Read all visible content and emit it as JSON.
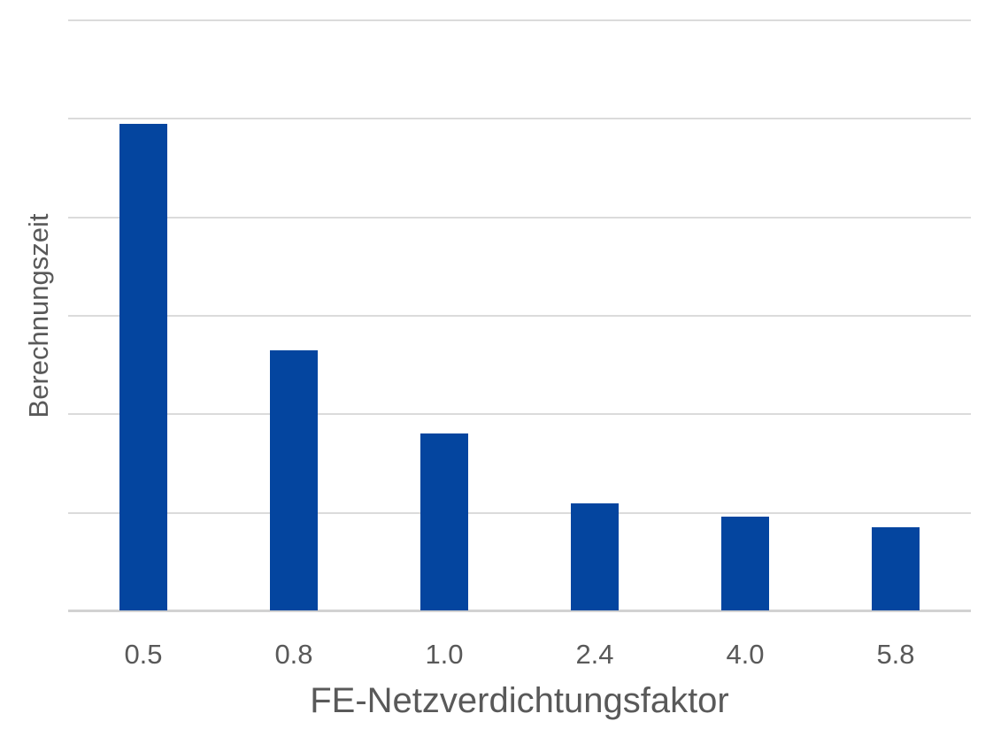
{
  "chart_data": {
    "type": "bar",
    "title": "",
    "categories": [
      "0.5",
      "0.8",
      "1.0",
      "2.4",
      "4.0",
      "5.8"
    ],
    "values": [
      4.94,
      2.64,
      1.8,
      1.09,
      0.95,
      0.84
    ],
    "xlabel": "FE-Netzverdichtungsfaktor",
    "ylabel": "Berechnungszeit",
    "ylim": [
      0,
      6
    ],
    "gridline_step": 1,
    "y_tick_labels_visible": false,
    "grid": "horizontal",
    "legend_position": "none",
    "colors": {
      "bar": "#04459F",
      "gridline": "#DBDBDB",
      "axis_line": "#D2D2D2",
      "text": "#595959",
      "background": "#FFFFFF"
    }
  }
}
